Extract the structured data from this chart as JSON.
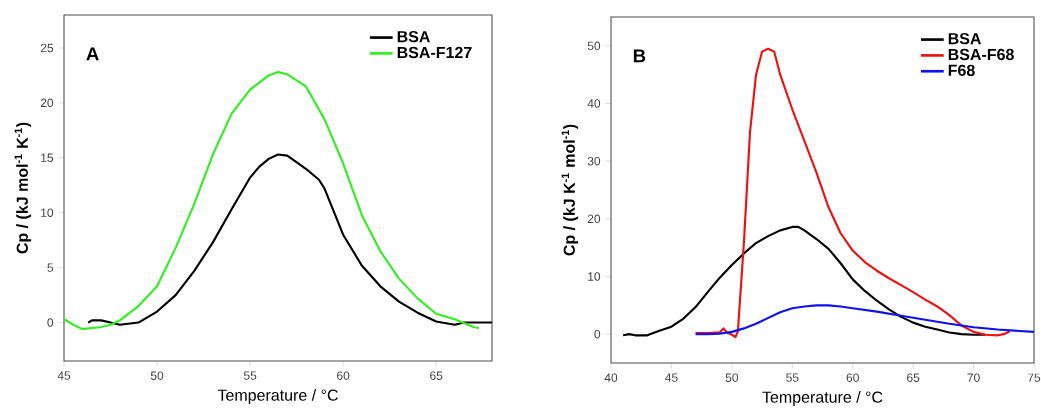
{
  "chart_data": [
    {
      "type": "line",
      "annotations": [
        "A"
      ],
      "xlabel": "Temperature / °C",
      "ylabel": "Cp / (kJ mol$^{-1}$ K$^{-1}$)",
      "xlim": [
        45,
        68
      ],
      "ylim": [
        -3.5,
        28
      ],
      "xticks": [
        45,
        50,
        55,
        60,
        65
      ],
      "yticks": [
        0,
        5,
        10,
        15,
        20,
        25
      ],
      "legend": "top right",
      "series": [
        {
          "name": "BSA",
          "color": "#000000",
          "x": [
            46.3,
            46.5,
            47,
            47.5,
            48,
            49,
            50,
            51,
            52,
            53,
            54,
            55,
            55.5,
            56,
            56.5,
            57,
            58,
            58.7,
            59,
            60,
            61,
            62,
            63,
            64,
            65,
            66,
            66.5,
            68
          ],
          "values": [
            0,
            0.2,
            0.2,
            0,
            -0.2,
            0,
            1,
            2.5,
            4.7,
            7.3,
            10.3,
            13.2,
            14.2,
            14.9,
            15.3,
            15.2,
            14,
            13,
            12.2,
            8,
            5.2,
            3.3,
            1.9,
            0.9,
            0.1,
            -0.2,
            0,
            0
          ]
        },
        {
          "name": "BSA-F127",
          "color": "#33ee22",
          "x": [
            45,
            45.5,
            46,
            46.5,
            47,
            47.5,
            48,
            49,
            50,
            51,
            52,
            53,
            54,
            55,
            56,
            56.5,
            57,
            58,
            59,
            60,
            61,
            62,
            63,
            64,
            65,
            66,
            67,
            67.3
          ],
          "values": [
            0.3,
            -0.2,
            -0.6,
            -0.5,
            -0.4,
            -0.2,
            0.2,
            1.5,
            3.3,
            6.8,
            10.8,
            15.3,
            19,
            21.2,
            22.5,
            22.8,
            22.6,
            21.5,
            18.5,
            14.5,
            9.8,
            6.5,
            4,
            2.2,
            0.8,
            0.3,
            -0.4,
            -0.5
          ]
        }
      ]
    },
    {
      "type": "line",
      "annotations": [
        "B"
      ],
      "xlabel": "Temperature / °C",
      "ylabel": "Cp / (kJ K$^{-1}$ mol$^{-1}$)",
      "xlim": [
        40,
        75
      ],
      "ylim": [
        -5,
        55
      ],
      "xticks": [
        40,
        45,
        50,
        55,
        60,
        65,
        70,
        75
      ],
      "yticks": [
        0,
        10,
        20,
        30,
        40,
        50
      ],
      "legend": "top right",
      "series": [
        {
          "name": "BSA",
          "color": "#000000",
          "x": [
            41,
            41.5,
            42,
            43,
            44,
            45,
            46,
            47,
            48,
            49,
            50,
            51,
            52,
            53,
            54,
            55,
            55.5,
            56,
            57,
            58,
            59,
            60,
            61,
            62,
            63,
            64,
            65,
            66,
            67,
            68,
            69,
            70,
            71
          ],
          "values": [
            -0.2,
            0,
            -0.2,
            -0.2,
            0.6,
            1.3,
            2.7,
            4.7,
            7.3,
            9.8,
            12,
            14,
            15.8,
            17,
            18,
            18.6,
            18.6,
            18,
            16.5,
            14.8,
            12.3,
            9.5,
            7.5,
            5.8,
            4.3,
            3,
            2,
            1.3,
            0.8,
            0.3,
            0,
            -0.1,
            -0.1
          ]
        },
        {
          "name": "BSA-F68",
          "color": "#ee1111",
          "x": [
            47,
            48,
            49,
            49.3,
            49.6,
            50,
            50.3,
            50.5,
            51,
            51.5,
            52,
            52.5,
            53,
            53.5,
            54,
            55,
            56,
            57,
            58,
            59,
            60,
            61,
            62,
            63,
            64,
            65,
            66,
            67,
            68,
            69,
            70,
            71,
            72,
            72.5,
            73
          ],
          "values": [
            0.2,
            0.2,
            0.3,
            1,
            0.3,
            -0.1,
            -0.5,
            0.5,
            16,
            35,
            45,
            49,
            49.5,
            49,
            45,
            39,
            33.5,
            28,
            22,
            17.5,
            14.5,
            12.5,
            11,
            9.7,
            8.5,
            7.3,
            6,
            4.8,
            3.3,
            1.5,
            0.4,
            -0.1,
            -0.2,
            0,
            0.5
          ]
        },
        {
          "name": "F68",
          "color": "#1111ee",
          "x": [
            47,
            48,
            49,
            50,
            51,
            52,
            53,
            54,
            55,
            56,
            57,
            58,
            59,
            60,
            62,
            64,
            66,
            68,
            70,
            72,
            75
          ],
          "values": [
            0,
            0,
            0.1,
            0.4,
            1,
            1.8,
            2.8,
            3.8,
            4.5,
            4.8,
            5,
            5,
            4.8,
            4.5,
            3.9,
            3.2,
            2.5,
            1.8,
            1.2,
            0.8,
            0.4
          ]
        }
      ]
    }
  ]
}
